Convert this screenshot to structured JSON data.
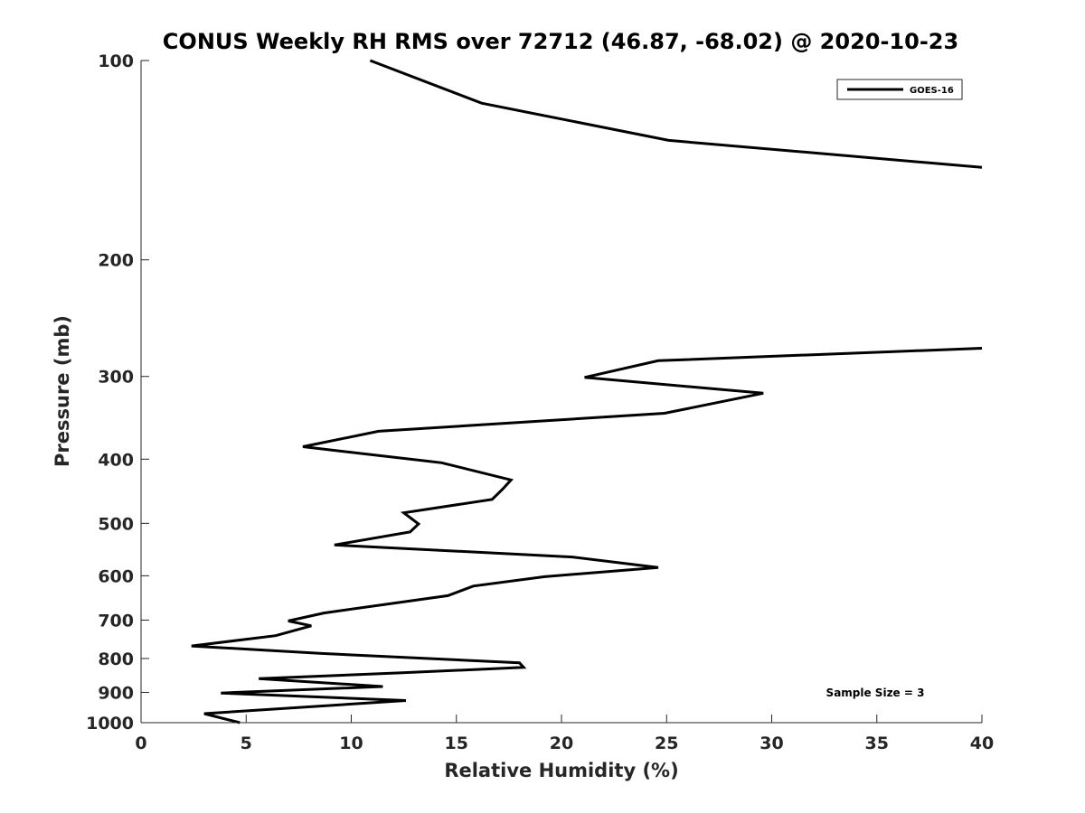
{
  "chart_data": {
    "type": "line",
    "title": "CONUS Weekly RH RMS over 72712 (46.87, -68.02) @ 2020-10-23",
    "xlabel": "Relative Humidity (%)",
    "ylabel": "Pressure (mb)",
    "xlim": [
      0,
      40
    ],
    "ylim": [
      100,
      1000
    ],
    "yscale": "log",
    "yreversed": true,
    "grid": false,
    "legend_position": "top-right",
    "x_ticks": [
      0,
      5,
      10,
      15,
      20,
      25,
      30,
      35,
      40
    ],
    "x_tick_labels": [
      "0",
      "5",
      "10",
      "15",
      "20",
      "25",
      "30",
      "35",
      "40"
    ],
    "y_ticks": [
      100,
      200,
      300,
      400,
      500,
      600,
      700,
      800,
      900,
      1000
    ],
    "y_tick_labels": [
      "100",
      "200",
      "300",
      "400",
      "500",
      "600",
      "700",
      "800",
      "900",
      "1000"
    ],
    "series": [
      {
        "name": "GOES-16",
        "color": "#000000",
        "segments": [
          [
            {
              "x": 10.9,
              "y": 100
            },
            {
              "x": 16.2,
              "y": 116
            },
            {
              "x": 25.1,
              "y": 132
            },
            {
              "x": 40.0,
              "y": 145
            }
          ],
          [
            {
              "x": 40.0,
              "y": 272
            },
            {
              "x": 24.6,
              "y": 284
            },
            {
              "x": 21.1,
              "y": 301
            },
            {
              "x": 29.6,
              "y": 318
            },
            {
              "x": 24.9,
              "y": 341
            },
            {
              "x": 11.3,
              "y": 363
            },
            {
              "x": 7.7,
              "y": 383
            },
            {
              "x": 14.3,
              "y": 405
            },
            {
              "x": 17.6,
              "y": 430
            },
            {
              "x": 17.2,
              "y": 444
            },
            {
              "x": 16.7,
              "y": 460
            },
            {
              "x": 12.5,
              "y": 482
            },
            {
              "x": 13.2,
              "y": 501
            },
            {
              "x": 12.8,
              "y": 515
            },
            {
              "x": 9.2,
              "y": 539
            },
            {
              "x": 20.5,
              "y": 562
            },
            {
              "x": 24.6,
              "y": 583
            },
            {
              "x": 19.2,
              "y": 602
            },
            {
              "x": 15.8,
              "y": 622
            },
            {
              "x": 14.6,
              "y": 643
            },
            {
              "x": 8.7,
              "y": 683
            },
            {
              "x": 7.0,
              "y": 702
            },
            {
              "x": 8.1,
              "y": 714
            },
            {
              "x": 6.4,
              "y": 739
            },
            {
              "x": 2.4,
              "y": 766
            },
            {
              "x": 8.5,
              "y": 786
            },
            {
              "x": 18.0,
              "y": 812
            },
            {
              "x": 18.2,
              "y": 825
            },
            {
              "x": 12.3,
              "y": 841
            },
            {
              "x": 5.6,
              "y": 858
            },
            {
              "x": 11.5,
              "y": 882
            },
            {
              "x": 3.8,
              "y": 902
            },
            {
              "x": 12.6,
              "y": 926
            },
            {
              "x": 3.0,
              "y": 969
            },
            {
              "x": 4.7,
              "y": 1000
            }
          ]
        ]
      }
    ],
    "legend": {
      "entries": [
        "GOES-16"
      ]
    },
    "annotations": [
      {
        "text": "Sample Size = 3",
        "position": "bottom-right"
      }
    ]
  }
}
